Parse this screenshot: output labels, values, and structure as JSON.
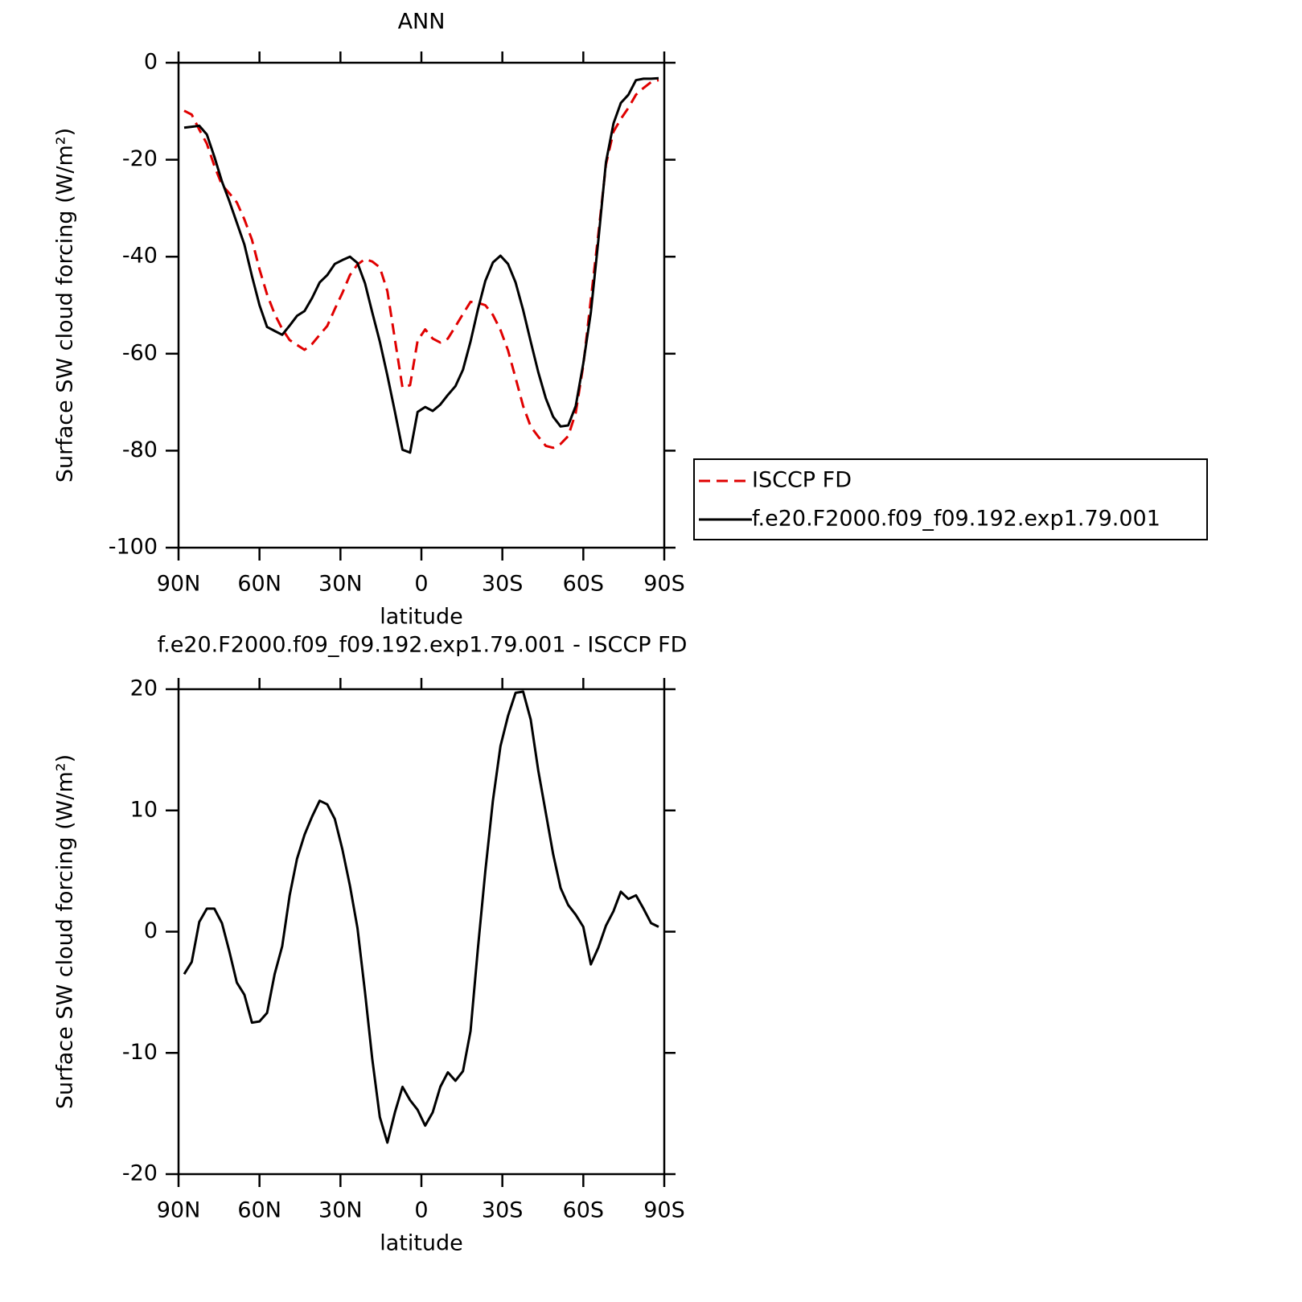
{
  "chart_data": [
    {
      "type": "line",
      "title": "ANN",
      "xlabel": "latitude",
      "ylabel": "Surface SW cloud forcing (W/m²)",
      "x": [
        87.9,
        85.1,
        82.3,
        79.5,
        76.7,
        73.9,
        71.2,
        68.4,
        65.6,
        62.8,
        60.0,
        57.2,
        54.4,
        51.6,
        48.8,
        46.1,
        43.3,
        40.5,
        37.7,
        34.9,
        32.1,
        29.3,
        26.5,
        23.7,
        20.9,
        18.2,
        15.4,
        12.6,
        9.8,
        7.0,
        4.2,
        1.4,
        -1.4,
        -4.2,
        -7.0,
        -9.8,
        -12.6,
        -15.4,
        -18.2,
        -20.9,
        -23.7,
        -26.5,
        -29.3,
        -32.1,
        -34.9,
        -37.7,
        -40.5,
        -43.3,
        -46.1,
        -48.8,
        -51.6,
        -54.4,
        -57.2,
        -60.0,
        -62.8,
        -65.6,
        -68.4,
        -71.2,
        -73.9,
        -76.7,
        -79.5,
        -82.3,
        -85.1,
        -87.9
      ],
      "series": [
        {
          "name": "ISCCP FD",
          "color": "#e00000",
          "style": "dashed",
          "values": [
            -9.9,
            -10.7,
            -13.8,
            -16.7,
            -21.3,
            -25.2,
            -26.9,
            -28.8,
            -32.3,
            -36.5,
            -42.6,
            -47.8,
            -51.8,
            -54.9,
            -57.2,
            -58.2,
            -59.2,
            -58.0,
            -56.1,
            -54.3,
            -50.8,
            -47.5,
            -43.8,
            -41.6,
            -40.5,
            -41.0,
            -42.2,
            -47.1,
            -57.1,
            -67.0,
            -66.5,
            -57.3,
            -55.0,
            -56.9,
            -57.7,
            -56.9,
            -54.4,
            -51.8,
            -49.3,
            -49.5,
            -50.0,
            -52.0,
            -55.1,
            -59.3,
            -65.0,
            -70.8,
            -75.0,
            -77.1,
            -79.0,
            -79.4,
            -78.6,
            -77.0,
            -72.2,
            -62.4,
            -48.8,
            -35.2,
            -21.0,
            -14.2,
            -11.6,
            -9.3,
            -6.6,
            -5.2,
            -4.0,
            -3.6
          ]
        },
        {
          "name": "f.e20.F2000.f09_f09.192.exp1.79.001",
          "color": "#000000",
          "style": "solid",
          "values": [
            -13.4,
            -13.2,
            -13.0,
            -14.8,
            -19.4,
            -24.5,
            -28.5,
            -33.0,
            -37.5,
            -44.0,
            -50.0,
            -54.5,
            -55.3,
            -56.1,
            -54.2,
            -52.2,
            -51.2,
            -48.5,
            -45.3,
            -43.8,
            -41.5,
            -40.7,
            -40.0,
            -41.3,
            -45.5,
            -51.5,
            -57.5,
            -64.5,
            -72.0,
            -79.8,
            -80.4,
            -72.0,
            -71.0,
            -71.8,
            -70.5,
            -68.5,
            -66.7,
            -63.3,
            -57.5,
            -51.0,
            -45.0,
            -41.2,
            -39.8,
            -41.5,
            -45.3,
            -51.0,
            -57.5,
            -63.8,
            -69.2,
            -73.0,
            -75.0,
            -74.8,
            -70.8,
            -62.0,
            -51.5,
            -36.5,
            -20.5,
            -12.5,
            -8.3,
            -6.6,
            -3.6,
            -3.3,
            -3.3,
            -3.2
          ]
        }
      ],
      "xlim": [
        90,
        -90
      ],
      "xticks": [
        {
          "value": 90,
          "label": "90N"
        },
        {
          "value": 60,
          "label": "60N"
        },
        {
          "value": 30,
          "label": "30N"
        },
        0,
        {
          "value": -30,
          "label": "30S"
        },
        {
          "value": -60,
          "label": "60S"
        },
        {
          "value": -90,
          "label": "90S"
        }
      ],
      "ylim": [
        -100,
        0
      ],
      "yticks": [
        -100,
        -80,
        -60,
        -40,
        -20,
        0
      ],
      "legend": "right"
    },
    {
      "type": "line",
      "title": "f.e20.F2000.f09_f09.192.exp1.79.001 - ISCCP FD",
      "xlabel": "latitude",
      "ylabel": "Surface SW cloud forcing (W/m²)",
      "x": [
        87.9,
        85.1,
        82.3,
        79.5,
        76.7,
        73.9,
        71.2,
        68.4,
        65.6,
        62.8,
        60.0,
        57.2,
        54.4,
        51.6,
        48.8,
        46.1,
        43.3,
        40.5,
        37.7,
        34.9,
        32.1,
        29.3,
        26.5,
        23.7,
        20.9,
        18.2,
        15.4,
        12.6,
        9.8,
        7.0,
        4.2,
        1.4,
        -1.4,
        -4.2,
        -7.0,
        -9.8,
        -12.6,
        -15.4,
        -18.2,
        -20.9,
        -23.7,
        -26.5,
        -29.3,
        -32.1,
        -34.9,
        -37.7,
        -40.5,
        -43.3,
        -46.1,
        -48.8,
        -51.6,
        -54.4,
        -57.2,
        -60.0,
        -62.8,
        -65.6,
        -68.4,
        -71.2,
        -73.9,
        -76.7,
        -79.5,
        -82.3,
        -85.1,
        -87.9
      ],
      "series": [
        {
          "color": "#000000",
          "style": "solid",
          "values": [
            -3.5,
            -2.5,
            0.8,
            1.9,
            1.9,
            0.7,
            -1.6,
            -4.2,
            -5.2,
            -7.5,
            -7.4,
            -6.7,
            -3.5,
            -1.2,
            3.0,
            6.0,
            8.0,
            9.5,
            10.8,
            10.5,
            9.3,
            6.8,
            3.8,
            0.3,
            -5.0,
            -10.5,
            -15.3,
            -17.4,
            -14.9,
            -12.8,
            -13.9,
            -14.7,
            -16.0,
            -14.9,
            -12.8,
            -11.6,
            -12.3,
            -11.5,
            -8.2,
            -1.5,
            5.0,
            10.8,
            15.3,
            17.8,
            19.7,
            19.8,
            17.5,
            13.3,
            9.8,
            6.4,
            3.6,
            2.2,
            1.4,
            0.4,
            -2.7,
            -1.3,
            0.5,
            1.7,
            3.3,
            2.7,
            3.0,
            1.9,
            0.7,
            0.4
          ]
        }
      ],
      "xlim": [
        90,
        -90
      ],
      "xticks": [
        {
          "value": 90,
          "label": "90N"
        },
        {
          "value": 60,
          "label": "60N"
        },
        {
          "value": 30,
          "label": "30N"
        },
        0,
        {
          "value": -30,
          "label": "30S"
        },
        {
          "value": -60,
          "label": "60S"
        },
        {
          "value": -90,
          "label": "90S"
        }
      ],
      "ylim": [
        -20,
        20
      ],
      "yticks": [
        -20,
        -10,
        0,
        10,
        20
      ]
    }
  ]
}
